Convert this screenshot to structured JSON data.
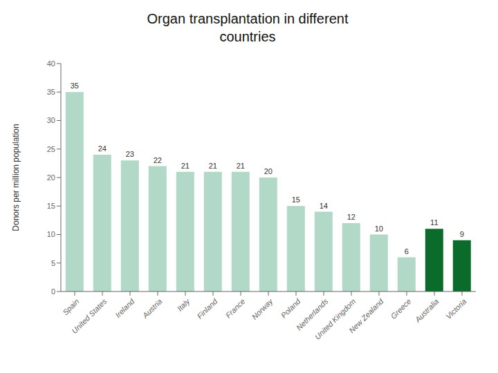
{
  "chart_data": {
    "type": "bar",
    "title": "Organ transplantation in different\ncountries",
    "ylabel": "Donors per million population",
    "categories": [
      "Spain",
      "United States",
      "Ireland",
      "Austria",
      "Italy",
      "Finland",
      "France",
      "Norway",
      "Poland",
      "Netherlands",
      "United Kingdom",
      "New Zealand",
      "Greece",
      "Australia",
      "Victoria"
    ],
    "values": [
      35,
      24,
      23,
      22,
      21,
      21,
      21,
      20,
      15,
      14,
      12,
      10,
      6,
      11,
      9
    ],
    "colors": [
      "#b2d8c8",
      "#b2d8c8",
      "#b2d8c8",
      "#b2d8c8",
      "#b2d8c8",
      "#b2d8c8",
      "#b2d8c8",
      "#b2d8c8",
      "#b2d8c8",
      "#b2d8c8",
      "#b2d8c8",
      "#b2d8c8",
      "#b2d8c8",
      "#0a6b2a",
      "#0a6b2a"
    ],
    "ylim": [
      0,
      40
    ],
    "yticks": [
      0,
      5,
      10,
      15,
      20,
      25,
      30,
      35,
      40
    ],
    "data_labels": true,
    "grid": false
  }
}
